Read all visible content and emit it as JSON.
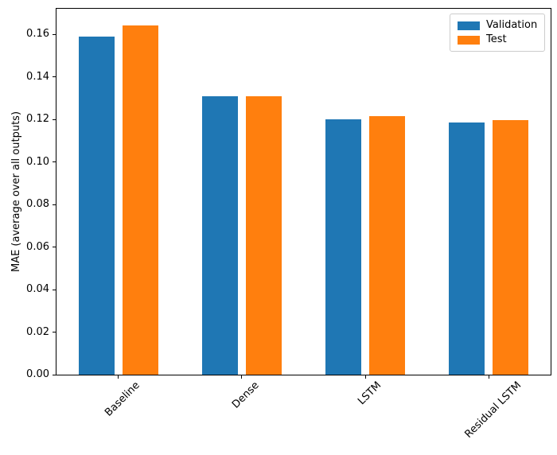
{
  "chart_data": {
    "type": "bar",
    "title": "",
    "categories": [
      "Baseline",
      "Dense",
      "LSTM",
      "Residual LSTM"
    ],
    "series": [
      {
        "name": "Validation",
        "color": "#1f77b4",
        "values": [
          0.159,
          0.131,
          0.1202,
          0.1184
        ]
      },
      {
        "name": "Test",
        "color": "#ff7f0e",
        "values": [
          0.1641,
          0.1308,
          0.1217,
          0.1196
        ]
      }
    ],
    "xlabel": "",
    "ylabel": "MAE (average over all outputs)",
    "ylim": [
      0,
      0.172
    ],
    "yticks": [
      0.0,
      0.02,
      0.04,
      0.06,
      0.08,
      0.1,
      0.12,
      0.14,
      0.16
    ],
    "ytick_labels": [
      "0.00",
      "0.02",
      "0.04",
      "0.06",
      "0.08",
      "0.10",
      "0.12",
      "0.14",
      "0.16"
    ],
    "xtick_rotation_deg": 45,
    "grid": false,
    "legend": {
      "position": "upper right",
      "entries": [
        "Validation",
        "Test"
      ]
    },
    "axis_color": "#000000",
    "text_color": "#000000",
    "background_color": "#ffffff"
  }
}
